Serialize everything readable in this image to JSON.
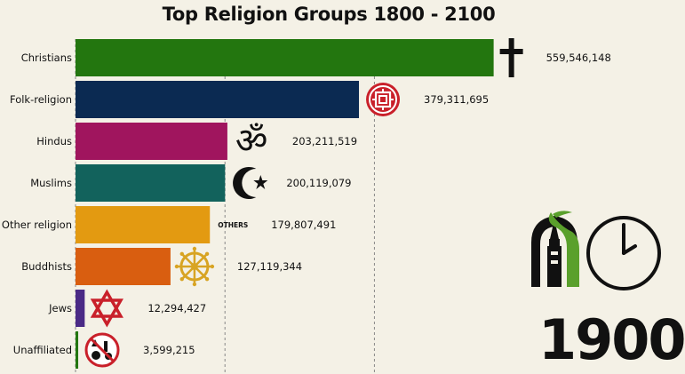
{
  "chart_data": {
    "type": "bar",
    "orientation": "horizontal",
    "title": "Top Religion Groups 1800 - 2100",
    "categories": [
      "Christians",
      "Folk-religion",
      "Hindus",
      "Muslims",
      "Other religion",
      "Buddhists",
      "Jews",
      "Unaffiliated"
    ],
    "values": [
      559546148,
      379311695,
      203211519,
      200119079,
      179807491,
      127119344,
      12294427,
      3599215
    ],
    "value_labels": [
      "559,546,148",
      "379,311,695",
      "203,211,519",
      "200,119,079",
      "179,807,491",
      "127,119,344",
      "12,294,427",
      "3,599,215"
    ],
    "colors": [
      "#23760f",
      "#0b2a52",
      "#a0155e",
      "#12625c",
      "#e39a11",
      "#d95e10",
      "#4a2a86",
      "#23760f"
    ],
    "icons": [
      "cross-icon",
      "folk-religion-emblem-icon",
      "om-icon",
      "crescent-star-icon",
      "others-text",
      "dharma-wheel-icon",
      "star-of-david-icon",
      "unaffiliated-symbols-icon"
    ],
    "icon_text_others": "OTHERS",
    "xlim": [
      0,
      560000000
    ],
    "gridlines": [
      200000000,
      400000000
    ],
    "grid": true,
    "legend": "none"
  },
  "year": "1900",
  "logo_icons": [
    "mosque-logo-icon",
    "clock-icon"
  ]
}
